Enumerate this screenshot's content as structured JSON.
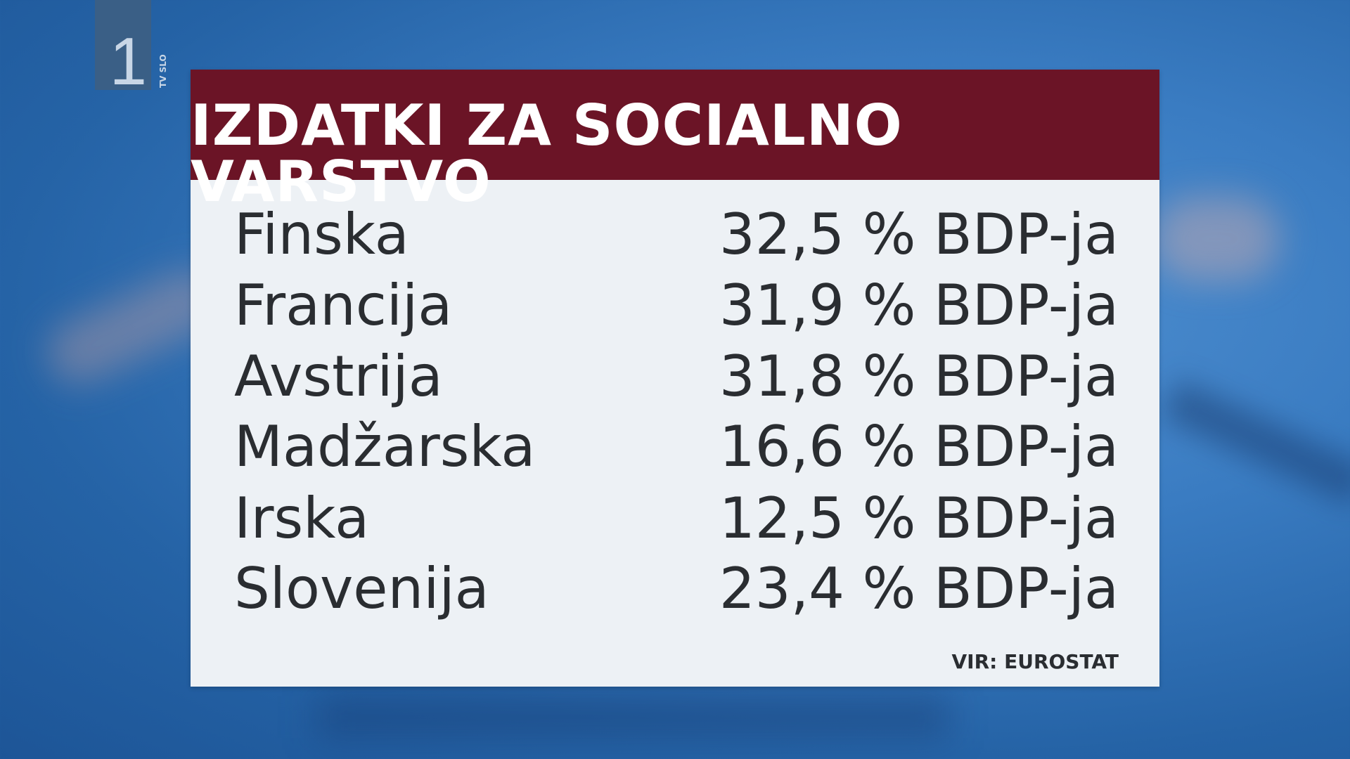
{
  "channel": {
    "logo_number": "1",
    "logo_text": "TV SLO"
  },
  "title": "IZDATKI ZA SOCIALNO VARSTVO",
  "rows": [
    {
      "country": "Finska",
      "value": "32,5 % BDP-ja"
    },
    {
      "country": "Francija",
      "value": "31,9 % BDP-ja"
    },
    {
      "country": "Avstrija",
      "value": "31,8 % BDP-ja"
    },
    {
      "country": "Madžarska",
      "value": "16,6 % BDP-ja"
    },
    {
      "country": "Irska",
      "value": "12,5 % BDP-ja"
    },
    {
      "country": "Slovenija",
      "value": "23,4 % BDP-ja"
    }
  ],
  "source": "VIR: EUROSTAT",
  "colors": {
    "header": "#6b1426",
    "panel": "#edf1f5",
    "background": "#3a7cc2"
  }
}
